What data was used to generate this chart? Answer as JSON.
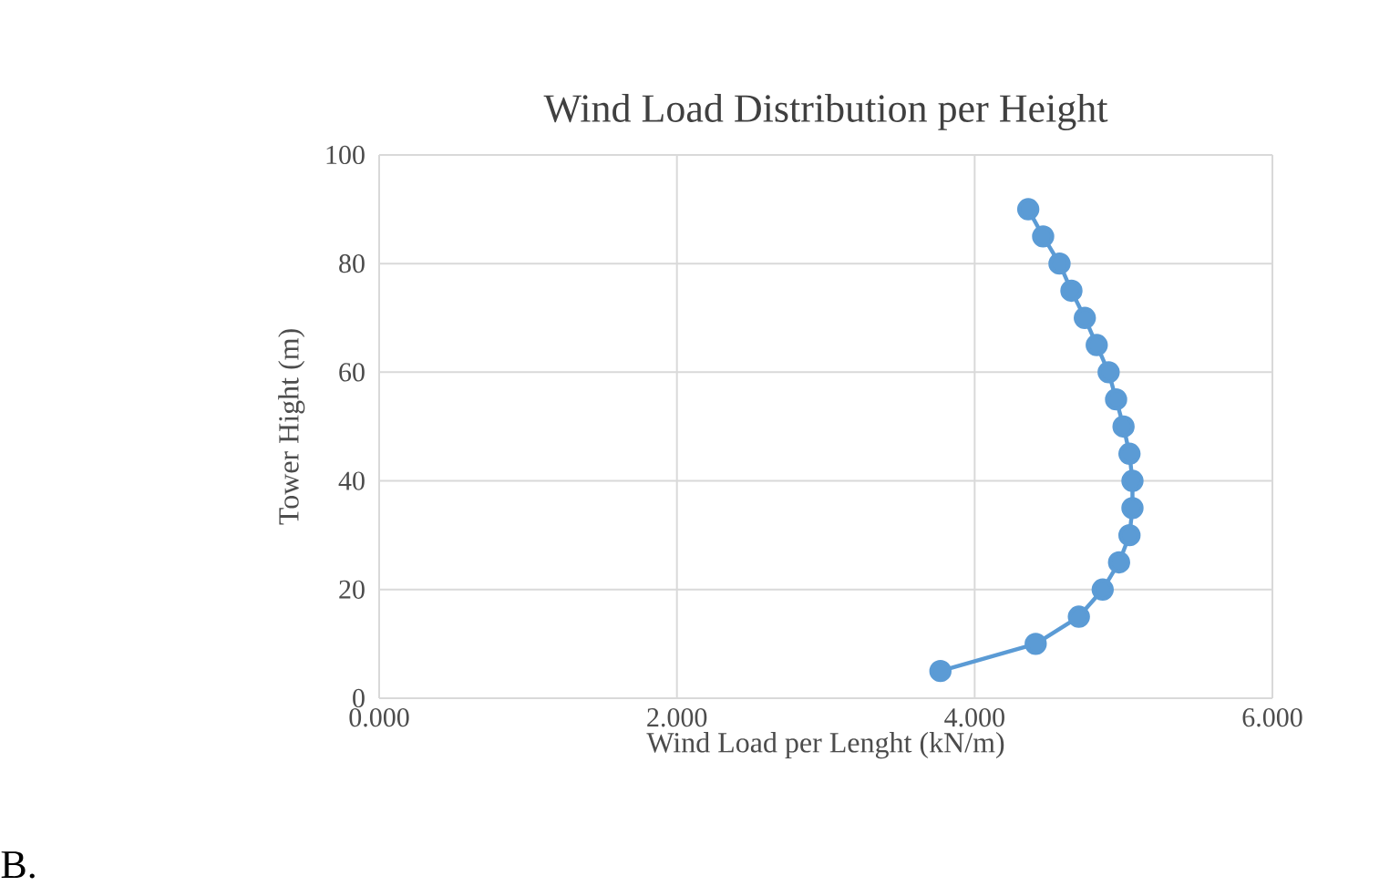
{
  "chart_data": {
    "type": "line",
    "title": "Wind Load Distribution per Height",
    "xlabel": "Wind Load per Lenght (kN/m)",
    "ylabel": "Tower Hight (m)",
    "series": [
      {
        "color": "#5b9bd5",
        "x": [
          3.77,
          4.41,
          4.7,
          4.86,
          4.97,
          5.04,
          5.06,
          5.06,
          5.04,
          5.0,
          4.95,
          4.9,
          4.82,
          4.74,
          4.65,
          4.57,
          4.46,
          4.36
        ],
        "values": [
          5,
          10,
          15,
          20,
          25,
          30,
          35,
          40,
          45,
          50,
          55,
          60,
          65,
          70,
          75,
          80,
          85,
          90
        ]
      }
    ],
    "xlim": [
      0,
      6
    ],
    "xticks": [
      {
        "value": 0,
        "label": "0.000"
      },
      {
        "value": 2,
        "label": "2.000"
      },
      {
        "value": 4,
        "label": "4.000"
      },
      {
        "value": 6,
        "label": "6.000"
      }
    ],
    "ylim": [
      0,
      100
    ],
    "yticks": [
      0,
      20,
      40,
      60,
      80,
      100
    ],
    "grid": true,
    "marker": "circle",
    "line_style": "solid",
    "annotations": [
      "B."
    ]
  }
}
